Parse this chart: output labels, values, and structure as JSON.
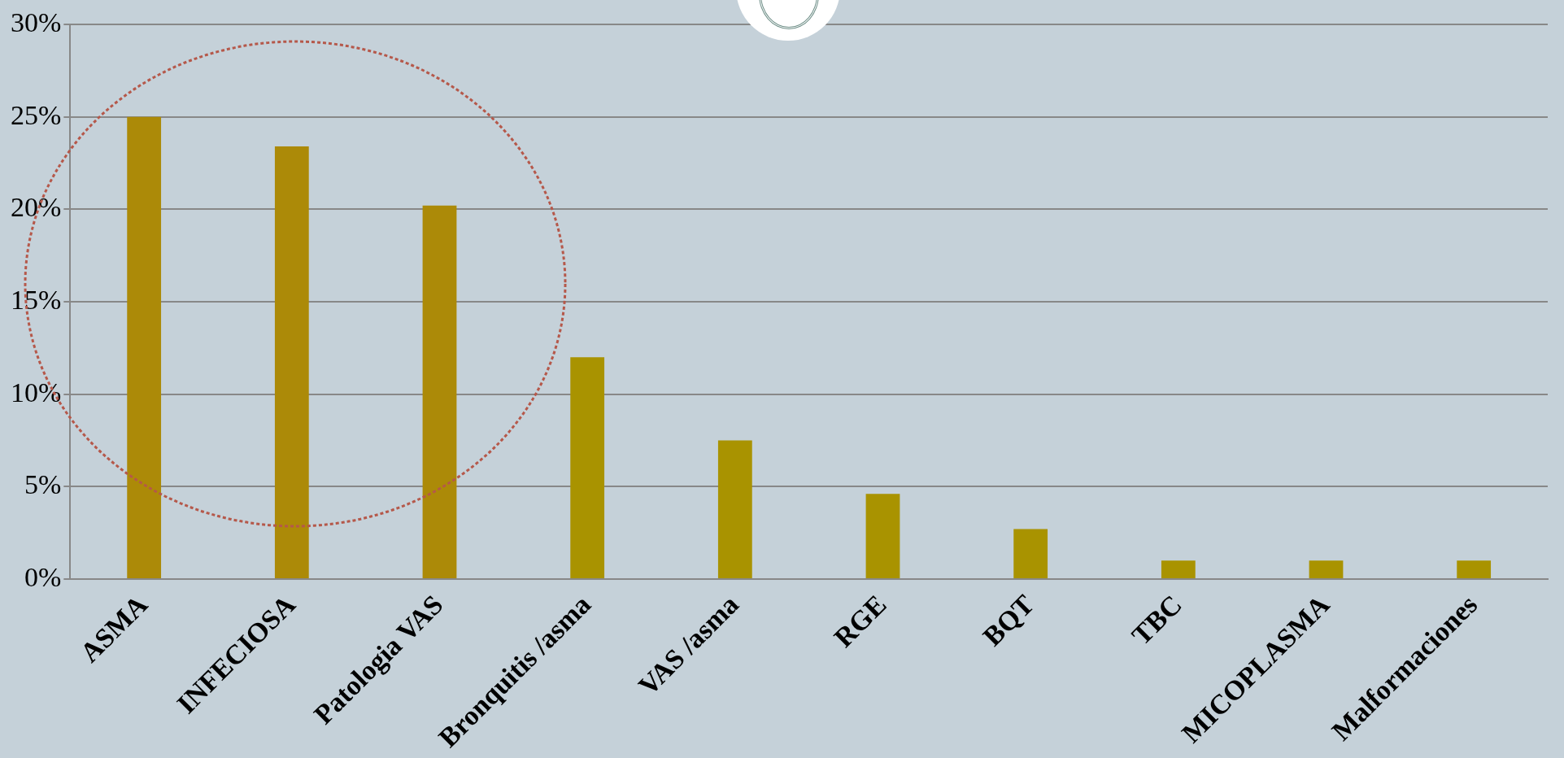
{
  "chart_data": {
    "type": "bar",
    "categories": [
      "ASMA",
      "INFECIOSA",
      "Patologia VAS",
      "Bronquitis /asma",
      "VAS /asma",
      "RGE",
      "BQT",
      "TBC",
      "MICOPLASMA",
      "Malformaciones"
    ],
    "values": [
      25,
      23.4,
      20.2,
      12.0,
      7.5,
      4.6,
      2.7,
      1.0,
      1.0,
      1.0
    ],
    "colors": [
      "#ac8a08",
      "#ac8a08",
      "#ac8a08",
      "#a99300",
      "#a99300",
      "#a99300",
      "#a99300",
      "#a99300",
      "#a99300",
      "#a99300"
    ],
    "ylim": [
      0,
      30
    ],
    "yticks": [
      {
        "value": 0,
        "label": "0%"
      },
      {
        "value": 5,
        "label": "5%"
      },
      {
        "value": 10,
        "label": "10%"
      },
      {
        "value": 15,
        "label": "15%"
      },
      {
        "value": 20,
        "label": "20%"
      },
      {
        "value": 25,
        "label": "25%"
      },
      {
        "value": 30,
        "label": "30%"
      }
    ],
    "grid": "y",
    "legend": false
  }
}
